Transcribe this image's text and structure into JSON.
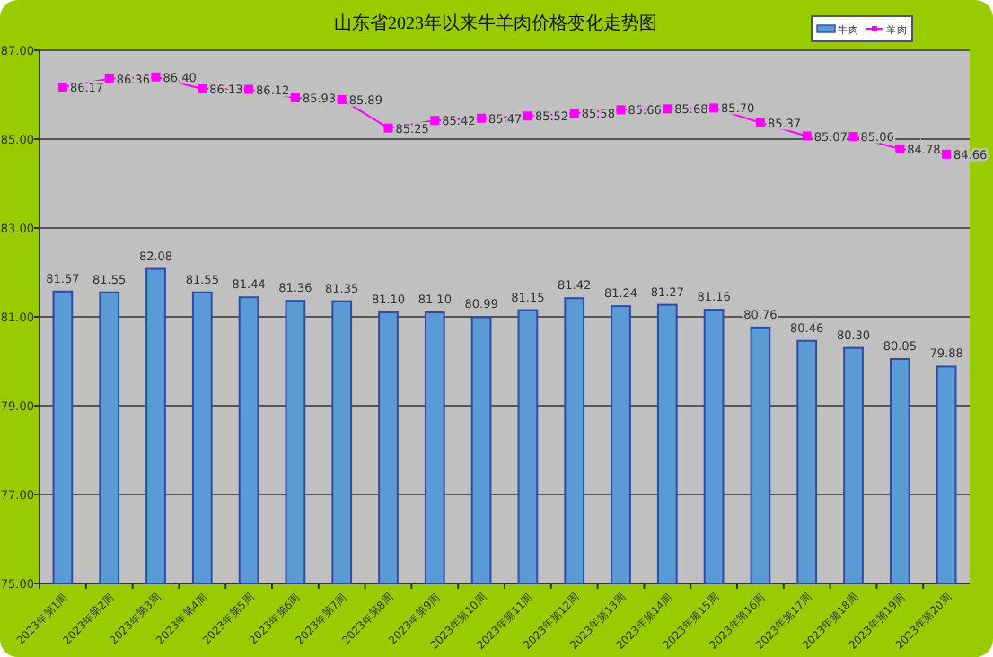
{
  "chart_data": {
    "type": "bar",
    "title": "山东省2023年以来牛羊肉价格变化走势图",
    "categories": [
      "2023年第1周",
      "2023年第2周",
      "2023年第3周",
      "2023年第4周",
      "2023年第5周",
      "2023年第6周",
      "2023年第7周",
      "2023年第8周",
      "2023年第9周",
      "2023年第10周",
      "2023年第11周",
      "2023年第12周",
      "2023年第13周",
      "2023年第14周",
      "2023年第15周",
      "2023年第16周",
      "2023年第17周",
      "2023年第18周",
      "2023年第19周",
      "2023年第20周"
    ],
    "series": [
      {
        "name": "牛肉",
        "color": "#5b9bd5",
        "values": [
          81.57,
          81.55,
          82.08,
          81.55,
          81.44,
          81.36,
          81.35,
          81.1,
          81.1,
          80.99,
          81.15,
          81.42,
          81.24,
          81.27,
          81.16,
          80.76,
          80.46,
          80.3,
          80.05,
          79.88
        ],
        "value_labels": [
          "81.57",
          "81.55",
          "82.08",
          "81.55",
          "81.44",
          "81.36",
          "81.35",
          "81.10",
          "81.10",
          "80.99",
          "81.15",
          "81.42",
          "81.24",
          "81.27",
          "81.16",
          "80.76",
          "80.46",
          "80.30",
          "80.05",
          "79.88"
        ]
      },
      {
        "name": "羊肉",
        "type": "line",
        "color": "#ff00ff",
        "marker": "square",
        "values": [
          86.17,
          86.36,
          86.4,
          86.13,
          86.12,
          85.93,
          85.89,
          85.25,
          85.42,
          85.47,
          85.52,
          85.58,
          85.66,
          85.68,
          85.7,
          85.37,
          85.07,
          85.06,
          84.78,
          84.66
        ],
        "value_labels": [
          "86.17",
          "86.36",
          "86.40",
          "86.13",
          "86.12",
          "85.93",
          "85.89",
          "85.25",
          "85.42",
          "85.47",
          "85.52",
          "85.58",
          "85.66",
          "85.68",
          "85.70",
          "85.37",
          "85.07",
          "85.06",
          "84.78",
          "84.66"
        ]
      }
    ],
    "ylim": [
      75,
      87
    ],
    "yticks": [
      {
        "value": 75,
        "label": "75.00"
      },
      {
        "value": 77,
        "label": "77.00"
      },
      {
        "value": 79,
        "label": "79.00"
      },
      {
        "value": 81,
        "label": "81.00"
      },
      {
        "value": 83,
        "label": "83.00"
      },
      {
        "value": 85,
        "label": "85.00"
      },
      {
        "value": 87,
        "label": "87.00"
      }
    ],
    "grid": "y",
    "legend": "top right"
  }
}
